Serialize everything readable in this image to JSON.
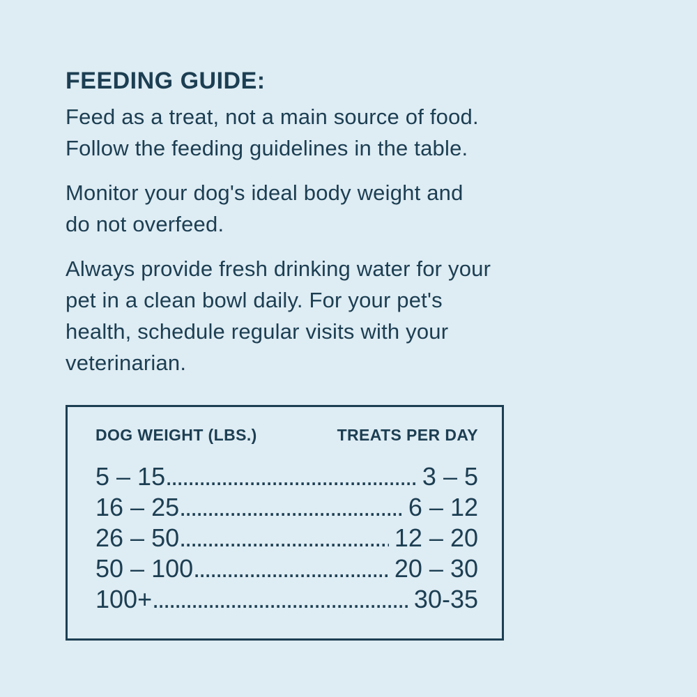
{
  "colors": {
    "background": "#deecf3",
    "text": "#1c3e52",
    "table_border": "#1c3e52"
  },
  "guide": {
    "title": "FEEDING GUIDE:",
    "paragraphs": [
      "Feed as a treat, not a main source of food.\nFollow the feeding guidelines in the table.",
      "Monitor your dog's ideal body weight and\ndo not overfeed.",
      "Always provide fresh drinking water for your\npet in a clean bowl daily. For your pet's\nhealth, schedule regular visits with your\nveterinarian."
    ]
  },
  "table": {
    "columns": {
      "weight": "DOG WEIGHT (LBS.)",
      "treats": "TREATS PER DAY"
    },
    "leader": "................................................................................",
    "rows": [
      {
        "weight": "5 – 15",
        "treats": "3 – 5"
      },
      {
        "weight": "16 – 25",
        "treats": "6 – 12"
      },
      {
        "weight": "26 – 50",
        "treats": "12 – 20"
      },
      {
        "weight": "50 – 100",
        "treats": "20 – 30"
      },
      {
        "weight": "100+",
        "treats": "30-35"
      }
    ]
  }
}
